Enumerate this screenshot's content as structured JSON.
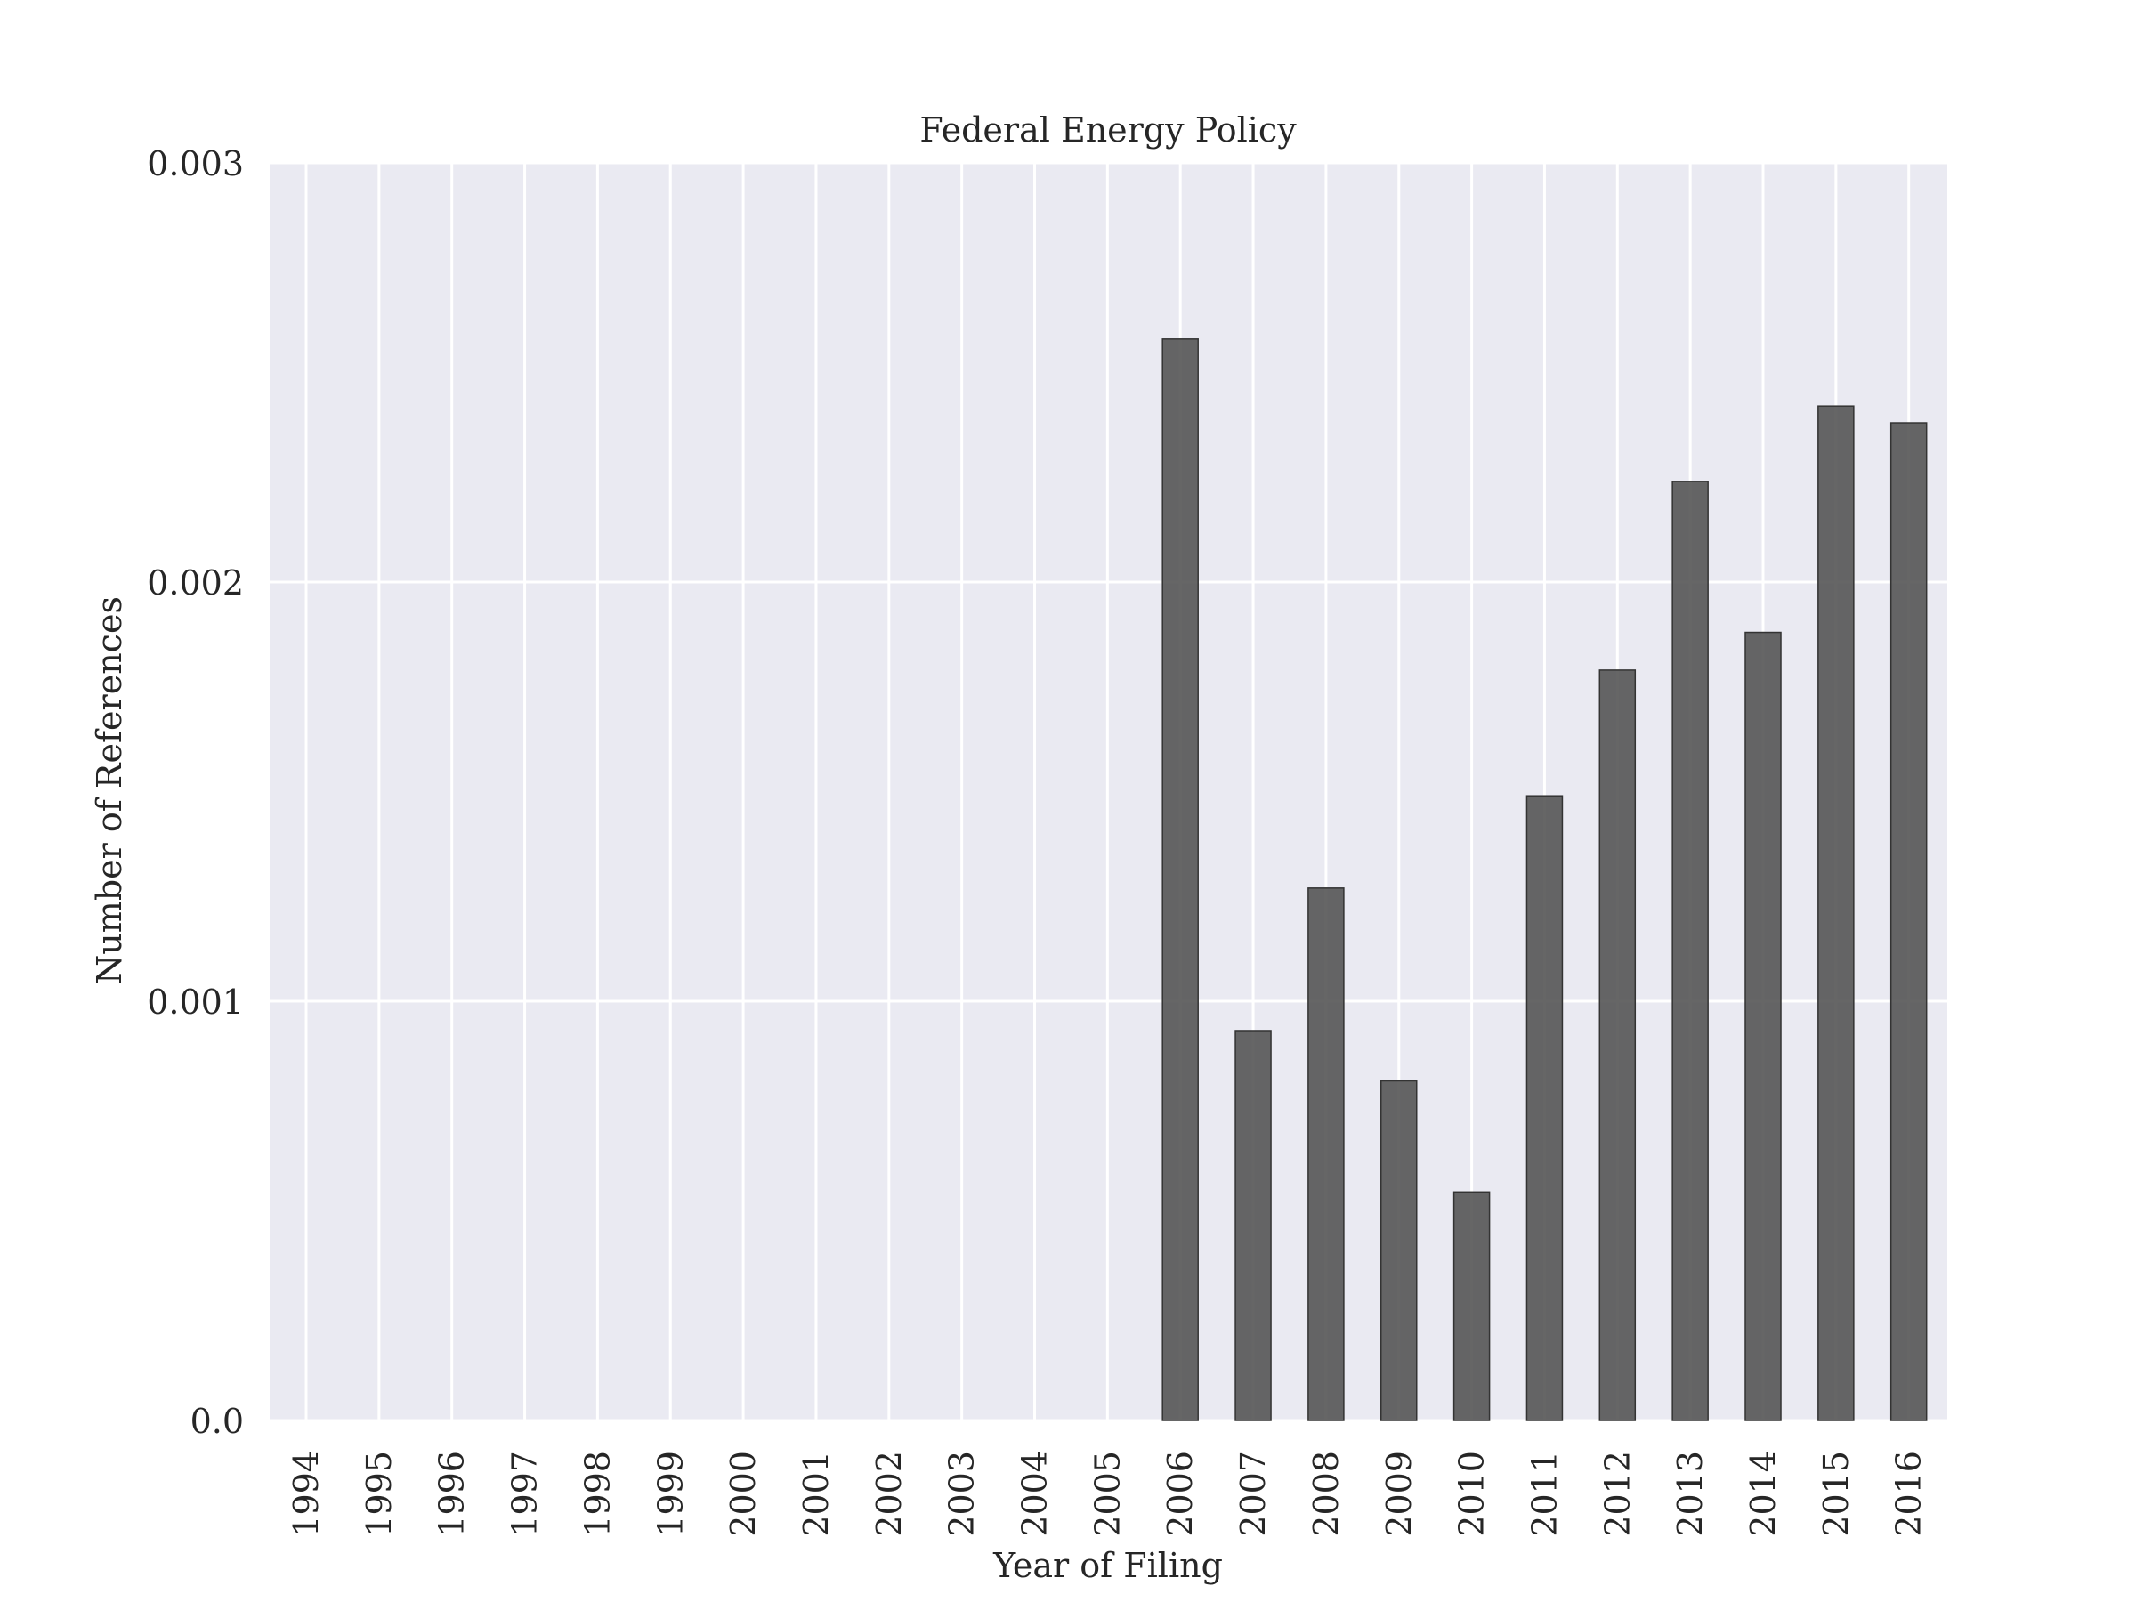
{
  "chart_data": {
    "type": "bar",
    "title": "Federal Energy Policy",
    "xlabel": "Year of Filing",
    "ylabel": "Number of References",
    "categories": [
      "1994",
      "1995",
      "1996",
      "1997",
      "1998",
      "1999",
      "2000",
      "2001",
      "2002",
      "2003",
      "2004",
      "2005",
      "2006",
      "2007",
      "2008",
      "2009",
      "2010",
      "2011",
      "2012",
      "2013",
      "2014",
      "2015",
      "2016"
    ],
    "values": [
      0,
      0,
      0,
      0,
      0,
      0,
      0,
      0,
      0,
      0,
      0,
      0,
      0.00258,
      0.00093,
      0.00127,
      0.00081,
      0.000545,
      0.00149,
      0.00179,
      0.00224,
      0.00188,
      0.00242,
      0.00238
    ],
    "ylim": [
      0,
      0.003
    ],
    "yticks": [
      0.0,
      0.001,
      0.002,
      0.003
    ],
    "ytick_labels": [
      "0.0",
      "0.001",
      "0.002",
      "0.003"
    ],
    "grid": true,
    "colors": {
      "bar": "#555555",
      "bar_edge": "#333333",
      "plot_background": "#EAEAF2",
      "grid": "#FFFFFF"
    }
  }
}
